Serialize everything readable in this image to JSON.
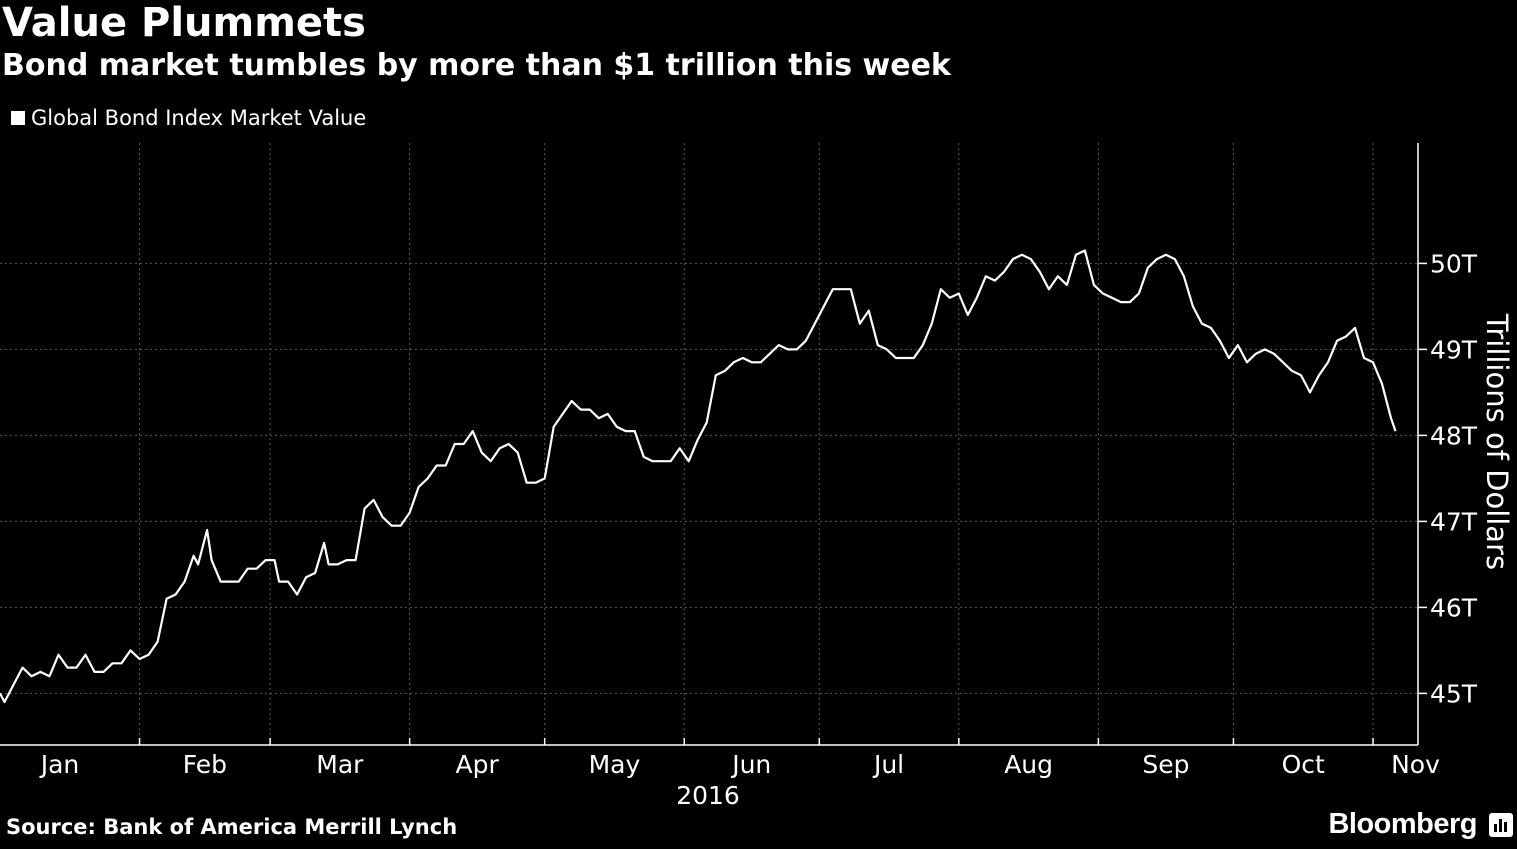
{
  "header": {
    "title": "Value Plummets",
    "subtitle": "Bond market tumbles by more than $1 trillion this week"
  },
  "footer": {
    "source": "Source: Bank of America Merrill Lynch",
    "brand": "Bloomberg"
  },
  "colors": {
    "background": "#000000",
    "line": "#ffffff",
    "grid": "#5a5a5a"
  },
  "chart_data": {
    "type": "line",
    "title": "Value Plummets",
    "subtitle": "Bond market tumbles by more than $1 trillion this week",
    "ylabel": "Trillions of Dollars",
    "xlabel": "2016",
    "year_label": "2016",
    "legend": "top-left",
    "grid": true,
    "x_range": [
      "2016-01-01",
      "2016-11-11"
    ],
    "ylim": [
      44.4,
      51.4
    ],
    "y_ticks": [
      45,
      46,
      47,
      48,
      49,
      50
    ],
    "y_tick_labels": [
      "45T",
      "46T",
      "47T",
      "48T",
      "49T",
      "50T"
    ],
    "x_month_ticks": [
      "2016-01-01",
      "2016-02-01",
      "2016-03-01",
      "2016-04-01",
      "2016-05-01",
      "2016-06-01",
      "2016-07-01",
      "2016-08-01",
      "2016-09-01",
      "2016-10-01",
      "2016-11-01"
    ],
    "x_tick_labels": [
      "Jan",
      "Feb",
      "Mar",
      "Apr",
      "May",
      "Jun",
      "Jul",
      "Aug",
      "Sep",
      "Oct",
      "Nov"
    ],
    "series": [
      {
        "name": "Global Bond Index Market Value",
        "points": [
          [
            "2016-01-01",
            45.0
          ],
          [
            "2016-01-02",
            44.9
          ],
          [
            "2016-01-04",
            45.1
          ],
          [
            "2016-01-06",
            45.3
          ],
          [
            "2016-01-08",
            45.2
          ],
          [
            "2016-01-10",
            45.25
          ],
          [
            "2016-01-12",
            45.2
          ],
          [
            "2016-01-14",
            45.45
          ],
          [
            "2016-01-16",
            45.3
          ],
          [
            "2016-01-18",
            45.3
          ],
          [
            "2016-01-20",
            45.45
          ],
          [
            "2016-01-22",
            45.25
          ],
          [
            "2016-01-24",
            45.25
          ],
          [
            "2016-01-26",
            45.35
          ],
          [
            "2016-01-28",
            45.35
          ],
          [
            "2016-01-30",
            45.5
          ],
          [
            "2016-02-01",
            45.4
          ],
          [
            "2016-02-03",
            45.45
          ],
          [
            "2016-02-05",
            45.6
          ],
          [
            "2016-02-07",
            46.1
          ],
          [
            "2016-02-09",
            46.15
          ],
          [
            "2016-02-11",
            46.3
          ],
          [
            "2016-02-13",
            46.6
          ],
          [
            "2016-02-14",
            46.5
          ],
          [
            "2016-02-16",
            46.9
          ],
          [
            "2016-02-17",
            46.55
          ],
          [
            "2016-02-19",
            46.3
          ],
          [
            "2016-02-21",
            46.3
          ],
          [
            "2016-02-23",
            46.3
          ],
          [
            "2016-02-25",
            46.45
          ],
          [
            "2016-02-27",
            46.45
          ],
          [
            "2016-02-29",
            46.55
          ],
          [
            "2016-03-02",
            46.55
          ],
          [
            "2016-03-03",
            46.3
          ],
          [
            "2016-03-05",
            46.3
          ],
          [
            "2016-03-07",
            46.15
          ],
          [
            "2016-03-09",
            46.35
          ],
          [
            "2016-03-11",
            46.4
          ],
          [
            "2016-03-13",
            46.75
          ],
          [
            "2016-03-14",
            46.5
          ],
          [
            "2016-03-16",
            46.5
          ],
          [
            "2016-03-18",
            46.55
          ],
          [
            "2016-03-20",
            46.55
          ],
          [
            "2016-03-22",
            47.15
          ],
          [
            "2016-03-24",
            47.25
          ],
          [
            "2016-03-26",
            47.05
          ],
          [
            "2016-03-28",
            46.95
          ],
          [
            "2016-03-30",
            46.95
          ],
          [
            "2016-04-01",
            47.1
          ],
          [
            "2016-04-03",
            47.4
          ],
          [
            "2016-04-05",
            47.5
          ],
          [
            "2016-04-07",
            47.65
          ],
          [
            "2016-04-09",
            47.65
          ],
          [
            "2016-04-11",
            47.9
          ],
          [
            "2016-04-13",
            47.9
          ],
          [
            "2016-04-15",
            48.05
          ],
          [
            "2016-04-17",
            47.8
          ],
          [
            "2016-04-19",
            47.7
          ],
          [
            "2016-04-21",
            47.85
          ],
          [
            "2016-04-23",
            47.9
          ],
          [
            "2016-04-25",
            47.8
          ],
          [
            "2016-04-27",
            47.45
          ],
          [
            "2016-04-29",
            47.45
          ],
          [
            "2016-05-01",
            47.5
          ],
          [
            "2016-05-03",
            48.1
          ],
          [
            "2016-05-05",
            48.25
          ],
          [
            "2016-05-07",
            48.4
          ],
          [
            "2016-05-09",
            48.3
          ],
          [
            "2016-05-11",
            48.3
          ],
          [
            "2016-05-13",
            48.2
          ],
          [
            "2016-05-15",
            48.25
          ],
          [
            "2016-05-17",
            48.1
          ],
          [
            "2016-05-19",
            48.05
          ],
          [
            "2016-05-21",
            48.05
          ],
          [
            "2016-05-23",
            47.75
          ],
          [
            "2016-05-25",
            47.7
          ],
          [
            "2016-05-27",
            47.7
          ],
          [
            "2016-05-29",
            47.7
          ],
          [
            "2016-05-31",
            47.85
          ],
          [
            "2016-06-02",
            47.7
          ],
          [
            "2016-06-04",
            47.95
          ],
          [
            "2016-06-06",
            48.15
          ],
          [
            "2016-06-08",
            48.7
          ],
          [
            "2016-06-10",
            48.75
          ],
          [
            "2016-06-12",
            48.85
          ],
          [
            "2016-06-14",
            48.9
          ],
          [
            "2016-06-16",
            48.85
          ],
          [
            "2016-06-18",
            48.85
          ],
          [
            "2016-06-20",
            48.95
          ],
          [
            "2016-06-22",
            49.05
          ],
          [
            "2016-06-24",
            49.0
          ],
          [
            "2016-06-26",
            49.0
          ],
          [
            "2016-06-28",
            49.1
          ],
          [
            "2016-06-30",
            49.3
          ],
          [
            "2016-07-02",
            49.5
          ],
          [
            "2016-07-04",
            49.7
          ],
          [
            "2016-07-06",
            49.7
          ],
          [
            "2016-07-08",
            49.7
          ],
          [
            "2016-07-10",
            49.3
          ],
          [
            "2016-07-12",
            49.45
          ],
          [
            "2016-07-14",
            49.05
          ],
          [
            "2016-07-16",
            49.0
          ],
          [
            "2016-07-18",
            48.9
          ],
          [
            "2016-07-20",
            48.9
          ],
          [
            "2016-07-22",
            48.9
          ],
          [
            "2016-07-24",
            49.05
          ],
          [
            "2016-07-26",
            49.3
          ],
          [
            "2016-07-28",
            49.7
          ],
          [
            "2016-07-30",
            49.6
          ],
          [
            "2016-08-01",
            49.65
          ],
          [
            "2016-08-03",
            49.4
          ],
          [
            "2016-08-05",
            49.6
          ],
          [
            "2016-08-07",
            49.85
          ],
          [
            "2016-08-09",
            49.8
          ],
          [
            "2016-08-11",
            49.9
          ],
          [
            "2016-08-13",
            50.05
          ],
          [
            "2016-08-15",
            50.1
          ],
          [
            "2016-08-17",
            50.05
          ],
          [
            "2016-08-19",
            49.9
          ],
          [
            "2016-08-21",
            49.7
          ],
          [
            "2016-08-23",
            49.85
          ],
          [
            "2016-08-25",
            49.75
          ],
          [
            "2016-08-27",
            50.1
          ],
          [
            "2016-08-29",
            50.15
          ],
          [
            "2016-08-31",
            49.75
          ],
          [
            "2016-09-02",
            49.65
          ],
          [
            "2016-09-04",
            49.6
          ],
          [
            "2016-09-06",
            49.55
          ],
          [
            "2016-09-08",
            49.55
          ],
          [
            "2016-09-10",
            49.65
          ],
          [
            "2016-09-12",
            49.95
          ],
          [
            "2016-09-14",
            50.05
          ],
          [
            "2016-09-16",
            50.1
          ],
          [
            "2016-09-18",
            50.05
          ],
          [
            "2016-09-20",
            49.85
          ],
          [
            "2016-09-22",
            49.5
          ],
          [
            "2016-09-24",
            49.3
          ],
          [
            "2016-09-26",
            49.25
          ],
          [
            "2016-09-28",
            49.1
          ],
          [
            "2016-09-30",
            48.9
          ],
          [
            "2016-10-02",
            49.05
          ],
          [
            "2016-10-04",
            48.85
          ],
          [
            "2016-10-06",
            48.95
          ],
          [
            "2016-10-08",
            49.0
          ],
          [
            "2016-10-10",
            48.95
          ],
          [
            "2016-10-12",
            48.85
          ],
          [
            "2016-10-14",
            48.75
          ],
          [
            "2016-10-16",
            48.7
          ],
          [
            "2016-10-18",
            48.5
          ],
          [
            "2016-10-20",
            48.7
          ],
          [
            "2016-10-22",
            48.85
          ],
          [
            "2016-10-24",
            49.1
          ],
          [
            "2016-10-26",
            49.15
          ],
          [
            "2016-10-28",
            49.25
          ],
          [
            "2016-10-30",
            48.9
          ],
          [
            "2016-11-01",
            48.85
          ],
          [
            "2016-11-03",
            48.6
          ],
          [
            "2016-11-05",
            48.2
          ],
          [
            "2016-11-06",
            48.05
          ]
        ]
      }
    ]
  }
}
